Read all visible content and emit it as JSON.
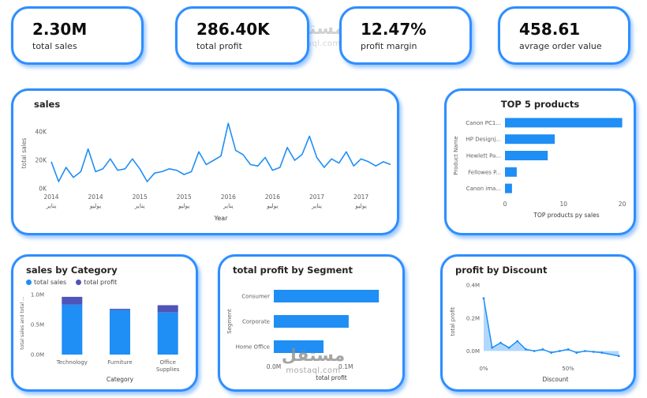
{
  "watermark": {
    "brand": "مستقل",
    "domain": "mostaql.com"
  },
  "kpis": [
    {
      "value": "2.30M",
      "label": "total sales"
    },
    {
      "value": "286.40K",
      "label": "total profit"
    },
    {
      "value": "12.47%",
      "label": "profit margin"
    },
    {
      "value": "458.61",
      "label": "avrage order value"
    }
  ],
  "colors": {
    "accent_border": "#2e8eff",
    "primary": "#1f8ef5",
    "dark_series": "#4e54b8",
    "area_fill": "rgba(31,142,245,0.35)",
    "axis_text": "#605e5c"
  },
  "chart_data": [
    {
      "id": "sales-line",
      "type": "line",
      "title": "sales",
      "xlabel": "Year",
      "ylabel": "total sales",
      "ylim": [
        0,
        50
      ],
      "yticks": [
        {
          "v": 0,
          "label": "0K"
        },
        {
          "v": 20,
          "label": "20K"
        },
        {
          "v": 40,
          "label": "40K"
        }
      ],
      "xticks": [
        {
          "i": 0,
          "line1": "2014",
          "line2": "يناير"
        },
        {
          "i": 6,
          "line1": "2014",
          "line2": "يوليو"
        },
        {
          "i": 12,
          "line1": "2015",
          "line2": "يناير"
        },
        {
          "i": 18,
          "line1": "2015",
          "line2": "يوليو"
        },
        {
          "i": 24,
          "line1": "2016",
          "line2": "يناير"
        },
        {
          "i": 30,
          "line1": "2016",
          "line2": "يوليو"
        },
        {
          "i": 36,
          "line1": "2017",
          "line2": "يناير"
        },
        {
          "i": 42,
          "line1": "2017",
          "line2": "يوليو"
        }
      ],
      "values": [
        19,
        5,
        15,
        8,
        12,
        28,
        12,
        14,
        21,
        13,
        14,
        21,
        14,
        5,
        11,
        12,
        14,
        13,
        10,
        12,
        26,
        17,
        20,
        23,
        46,
        27,
        24,
        17,
        16,
        22,
        13,
        15,
        29,
        20,
        24,
        37,
        22,
        15,
        21,
        18,
        26,
        16,
        21,
        19,
        16,
        19,
        17
      ]
    },
    {
      "id": "top-products",
      "type": "barh",
      "title": "TOP 5 products",
      "xlabel": "TOP products py sales",
      "ylabel": "Product Name",
      "categories": [
        "Canon PC1...",
        "HP Designj...",
        "Hewlett Pa...",
        "Fellowes P...",
        "Canon ima..."
      ],
      "values": [
        20,
        8.5,
        7.3,
        2,
        1.2
      ],
      "xlim": [
        0,
        21
      ],
      "xticks": [
        {
          "v": 0,
          "label": "0"
        },
        {
          "v": 10,
          "label": "10"
        },
        {
          "v": 20,
          "label": "20"
        }
      ]
    },
    {
      "id": "sales-by-category",
      "type": "stacked-column",
      "title": "sales by Category",
      "xlabel": "Category",
      "ylabel": "total sales and total ...",
      "categories": [
        "Technology",
        "Furniture",
        "Office\nSupplies"
      ],
      "series": [
        {
          "name": "total sales",
          "color": "#1f8ef5",
          "values": [
            0.83,
            0.74,
            0.7
          ]
        },
        {
          "name": "total profit",
          "color": "#4e54b8",
          "values": [
            0.13,
            0.02,
            0.12
          ]
        }
      ],
      "ylim": [
        0,
        1.05
      ],
      "yticks": [
        {
          "v": 0,
          "label": "0.0M"
        },
        {
          "v": 0.5,
          "label": "0.5M"
        },
        {
          "v": 1.0,
          "label": "1.0M"
        }
      ]
    },
    {
      "id": "profit-by-segment",
      "type": "barh",
      "title": "total profit by Segment",
      "xlabel": "total profit",
      "ylabel": "Segment",
      "categories": [
        "Consumer",
        "Corporate",
        "Home Office"
      ],
      "values": [
        0.146,
        0.104,
        0.069
      ],
      "xlim": [
        0,
        0.16
      ],
      "xticks": [
        {
          "v": 0,
          "label": "0.0M"
        },
        {
          "v": 0.1,
          "label": "0.1M"
        }
      ]
    },
    {
      "id": "profit-by-discount",
      "type": "area",
      "title": "profit by Discount",
      "xlabel": "Discount",
      "ylabel": "total profit",
      "x": [
        0,
        5,
        10,
        15,
        20,
        25,
        30,
        35,
        40,
        45,
        50,
        55,
        60,
        65,
        70,
        80
      ],
      "values": [
        0.32,
        0.02,
        0.05,
        0.02,
        0.06,
        0.01,
        0.0,
        0.01,
        -0.01,
        0.0,
        0.01,
        -0.01,
        0.0,
        -0.005,
        -0.01,
        -0.03
      ],
      "xlim": [
        0,
        85
      ],
      "ylim": [
        -0.06,
        0.42
      ],
      "xticks": [
        {
          "v": 0,
          "label": "0%"
        },
        {
          "v": 50,
          "label": "50%"
        }
      ],
      "yticks": [
        {
          "v": 0,
          "label": "0.0M"
        },
        {
          "v": 0.2,
          "label": "0.2M"
        },
        {
          "v": 0.4,
          "label": "0.4M"
        }
      ]
    }
  ]
}
